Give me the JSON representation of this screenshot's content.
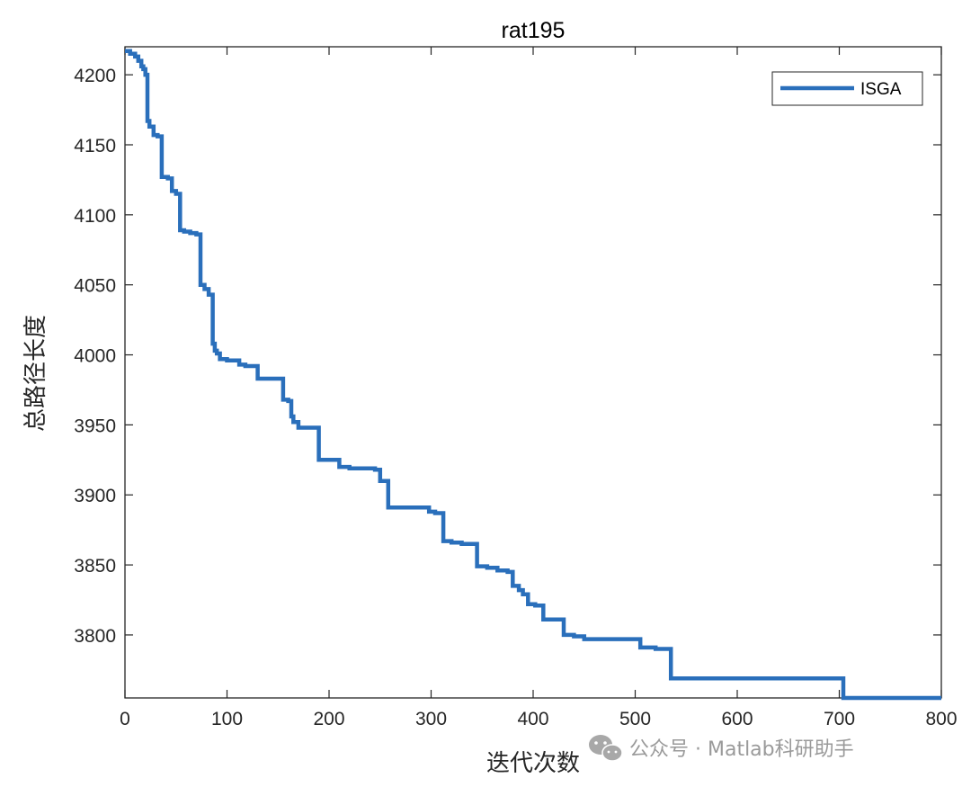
{
  "chart_data": {
    "type": "line",
    "title": "rat195",
    "xlabel": "迭代次数",
    "ylabel": "总路径长度",
    "xlim": [
      0,
      800
    ],
    "ylim": [
      3755,
      4220
    ],
    "xticks": [
      "0",
      "100",
      "200",
      "300",
      "400",
      "500",
      "600",
      "700",
      "800"
    ],
    "yticks": [
      "3800",
      "3850",
      "3900",
      "3950",
      "4000",
      "4050",
      "4100",
      "4150",
      "4200"
    ],
    "grid": false,
    "box": true,
    "legend_position": "top-right",
    "series": [
      {
        "name": "ISGA",
        "color": "#2a6fbb",
        "x": [
          0,
          5,
          10,
          13,
          16,
          18,
          20,
          22,
          24,
          28,
          32,
          36,
          42,
          46,
          50,
          54,
          58,
          64,
          70,
          74,
          78,
          82,
          86,
          88,
          90,
          93,
          96,
          100,
          106,
          112,
          118,
          124,
          130,
          140,
          150,
          155,
          160,
          163,
          165,
          170,
          180,
          190,
          200,
          210,
          220,
          235,
          245,
          250,
          258,
          270,
          290,
          298,
          304,
          312,
          320,
          330,
          340,
          345,
          355,
          365,
          375,
          380,
          386,
          390,
          395,
          402,
          410,
          420,
          430,
          440,
          450,
          500,
          505,
          520,
          530,
          535,
          560,
          600,
          660,
          700,
          704,
          720,
          760,
          800
        ],
        "y": [
          4217,
          4215,
          4213,
          4210,
          4206,
          4204,
          4200,
          4167,
          4163,
          4157,
          4156,
          4127,
          4126,
          4117,
          4115,
          4089,
          4088,
          4087,
          4086,
          4050,
          4047,
          4043,
          4008,
          4003,
          4001,
          3997,
          3997,
          3996,
          3996,
          3993,
          3992,
          3992,
          3983,
          3983,
          3983,
          3968,
          3967,
          3956,
          3952,
          3948,
          3948,
          3925,
          3925,
          3920,
          3919,
          3919,
          3918,
          3910,
          3891,
          3891,
          3891,
          3888,
          3887,
          3867,
          3866,
          3865,
          3865,
          3849,
          3848,
          3846,
          3845,
          3835,
          3832,
          3829,
          3822,
          3821,
          3811,
          3811,
          3800,
          3799,
          3797,
          3797,
          3791,
          3790,
          3790,
          3769,
          3769,
          3769,
          3769,
          3769,
          3755,
          3755,
          3755,
          3755
        ]
      }
    ]
  },
  "watermark": {
    "icon": "wechat-icon",
    "text": "公众号 · Matlab科研助手"
  }
}
